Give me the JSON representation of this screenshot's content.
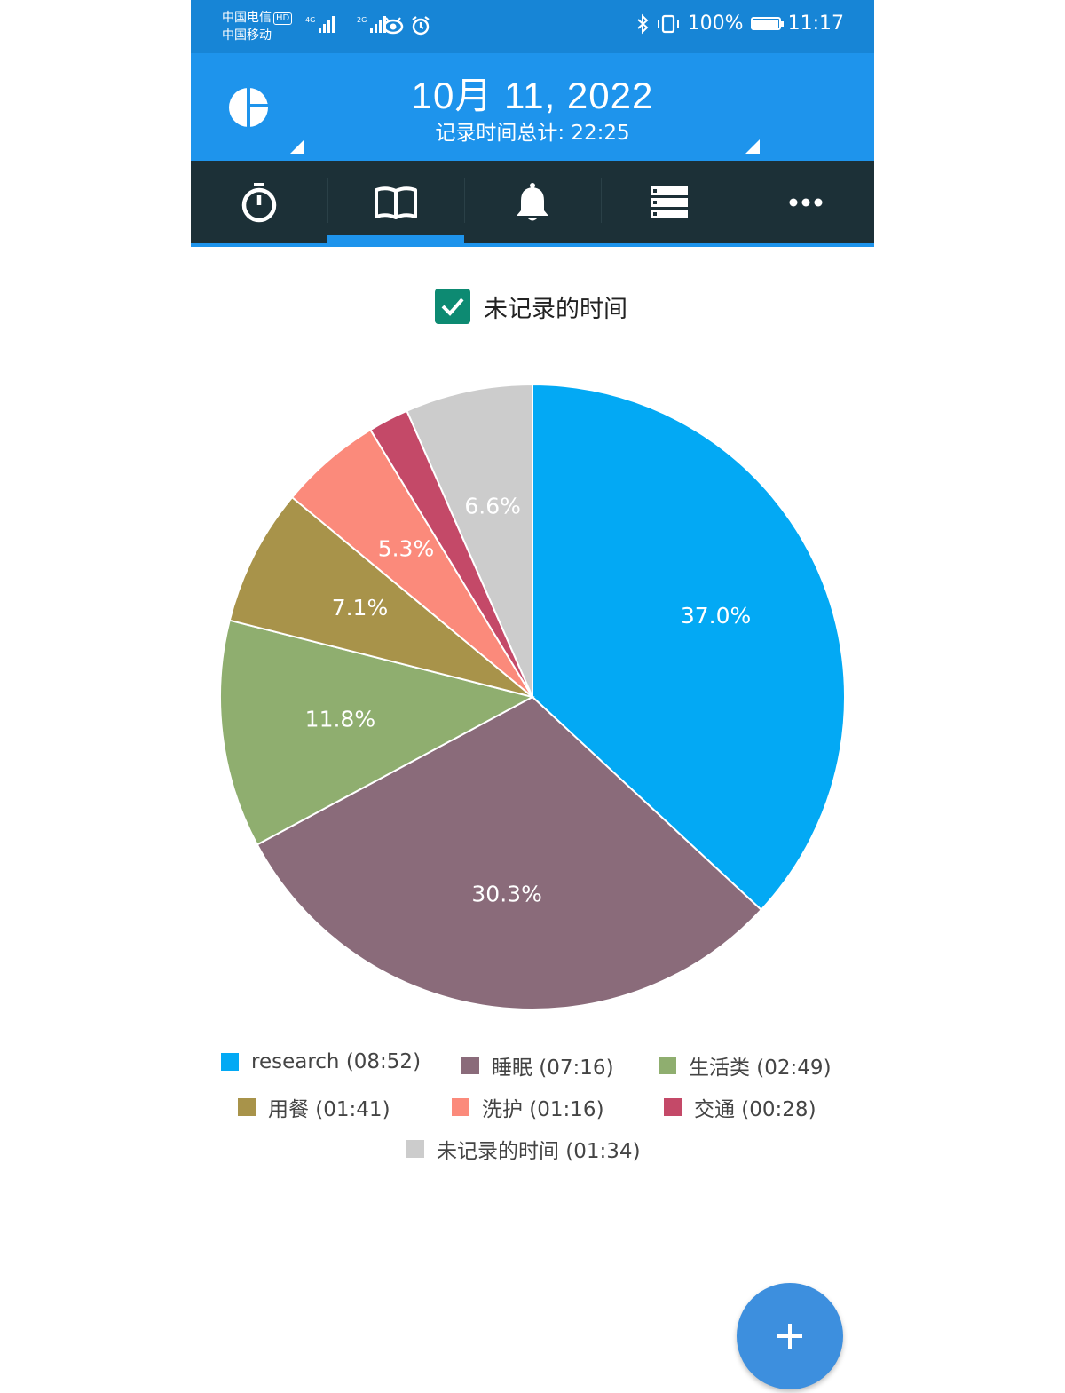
{
  "status_bar": {
    "carrier_1": "中国电信",
    "carrier_1_badge": "HD",
    "carrier_2": "中国移动",
    "signal_1_tag": "4G",
    "signal_2_tag": "2G",
    "battery": "100%",
    "time": "11:17"
  },
  "header": {
    "date": "10月 11, 2022",
    "total_recorded": "记录时间总计: 22:25"
  },
  "tabs": [
    {
      "icon": "stopwatch-icon"
    },
    {
      "icon": "book-icon",
      "active": true
    },
    {
      "icon": "bell-icon"
    },
    {
      "icon": "list-icon"
    },
    {
      "icon": "more-icon"
    }
  ],
  "filter": {
    "checkbox_label": "未记录的时间",
    "checked": true
  },
  "chart_data": {
    "type": "pie",
    "slices": [
      {
        "label": "research",
        "duration": "08:52",
        "percent": 37.0,
        "percent_label": "37.0%",
        "color": "#03a9f4"
      },
      {
        "label": "睡眠",
        "duration": "07:16",
        "percent": 30.3,
        "percent_label": "30.3%",
        "color": "#8a6b7a"
      },
      {
        "label": "生活类",
        "duration": "02:49",
        "percent": 11.8,
        "percent_label": "11.8%",
        "color": "#8fae6f"
      },
      {
        "label": "用餐",
        "duration": "01:41",
        "percent": 7.1,
        "percent_label": "7.1%",
        "color": "#a8934a"
      },
      {
        "label": "洗护",
        "duration": "01:16",
        "percent": 5.3,
        "percent_label": "5.3%",
        "color": "#fb8a7b"
      },
      {
        "label": "交通",
        "duration": "00:28",
        "percent": 2.1,
        "percent_label": "",
        "color": "#c44968"
      },
      {
        "label": "未记录的时间",
        "duration": "01:34",
        "percent": 6.6,
        "percent_label": "6.6%",
        "color": "#cccccc"
      }
    ],
    "legend": [
      "research (08:52)",
      "睡眠 (07:16)",
      "生活类 (02:49)",
      "用餐 (01:41)",
      "洗护 (01:16)",
      "交通 (00:28)",
      "未记录的时间 (01:34)"
    ]
  },
  "fab": {
    "label": "+"
  }
}
